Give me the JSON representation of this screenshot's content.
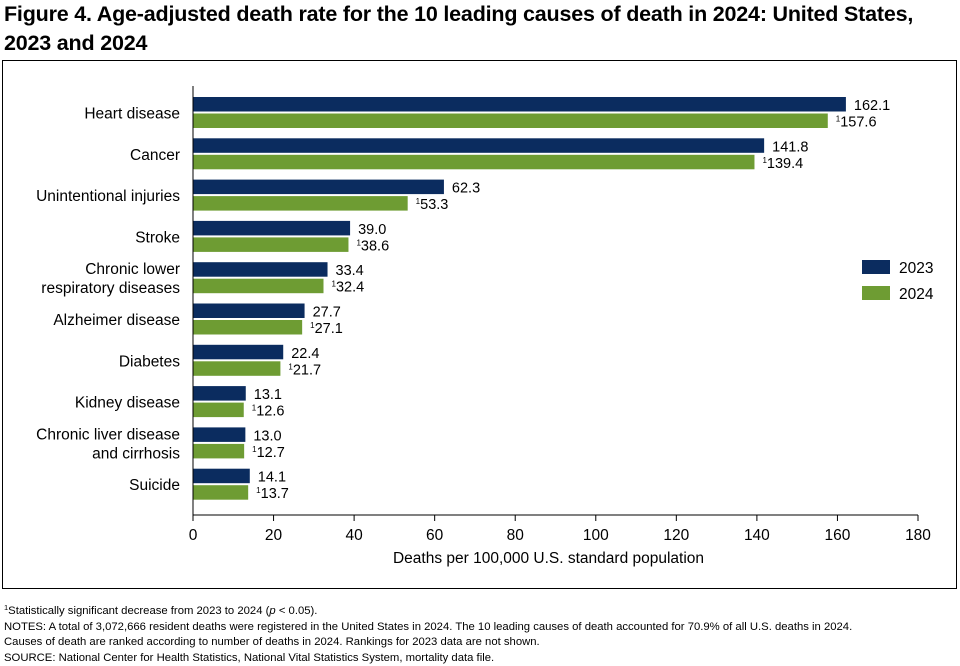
{
  "title": "Figure 4. Age-adjusted death rate for the 10 leading causes of death in 2024: United States, 2023 and 2024",
  "chart_data": {
    "type": "bar",
    "orientation": "horizontal",
    "categories": [
      [
        "Heart disease"
      ],
      [
        "Cancer"
      ],
      [
        "Unintentional injuries"
      ],
      [
        "Stroke"
      ],
      [
        "Chronic lower",
        "respiratory diseases"
      ],
      [
        "Alzheimer disease"
      ],
      [
        "Diabetes"
      ],
      [
        "Kidney disease"
      ],
      [
        "Chronic liver disease",
        "and cirrhosis"
      ],
      [
        "Suicide"
      ]
    ],
    "series": [
      {
        "name": "2023",
        "color": "#0b2c5f",
        "values": [
          162.1,
          141.8,
          62.3,
          39.0,
          33.4,
          27.7,
          22.4,
          13.1,
          13.0,
          14.1
        ],
        "labels": [
          "162.1",
          "141.8",
          "62.3",
          "39.0",
          "33.4",
          "27.7",
          "22.4",
          "13.1",
          "13.0",
          "14.1"
        ]
      },
      {
        "name": "2024",
        "color": "#6e9c33",
        "values": [
          157.6,
          139.4,
          53.3,
          38.6,
          32.4,
          27.1,
          21.7,
          12.6,
          12.7,
          13.7
        ],
        "labels": [
          "157.6",
          "139.4",
          "53.3",
          "38.6",
          "32.4",
          "27.1",
          "21.7",
          "12.6",
          "12.7",
          "13.7"
        ],
        "footnote_marker": "1"
      }
    ],
    "xlabel": "Deaths per 100,000 U.S. standard population",
    "xlim": [
      0,
      180
    ],
    "xticks": [
      "0",
      "20",
      "40",
      "60",
      "80",
      "100",
      "120",
      "140",
      "160",
      "180"
    ],
    "grid": false,
    "legend_position": "right"
  },
  "notes": {
    "footnote_marker": "1",
    "footnote": "Statistically significant decrease from 2023 to 2024 (",
    "footnote_p": "p",
    "footnote_end": " < 0.05).",
    "line1": "NOTES: A total of 3,072,666 resident deaths were registered in the United States in 2024. The 10 leading causes of death accounted for 70.9% of all U.S. deaths in 2024.",
    "line2": "Causes of death are ranked according to number of deaths in 2024. Rankings for 2023 data are not shown.",
    "source": "SOURCE: National Center for Health Statistics, National Vital Statistics System, mortality data file."
  }
}
